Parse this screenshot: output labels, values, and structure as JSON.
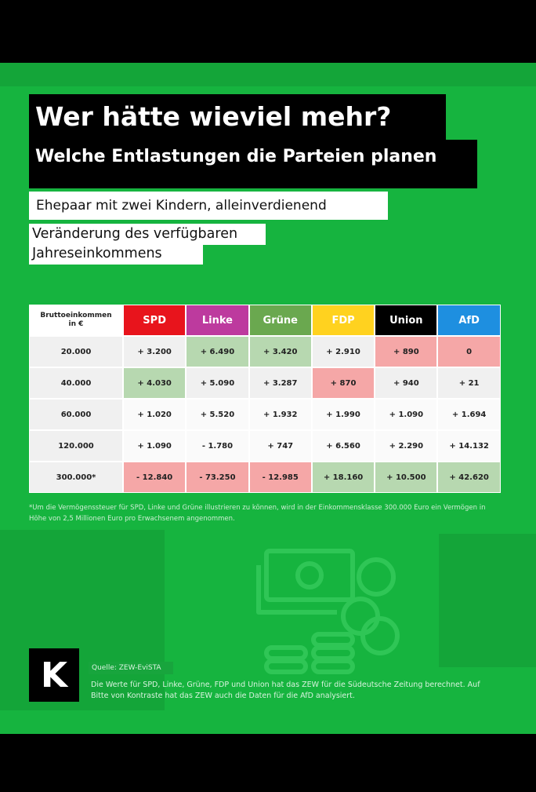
{
  "header": {
    "title": "Wer hätte wieviel mehr?",
    "subtitle": "Welche Entlastungen die Parteien planen",
    "scenario": "Ehepaar mit zwei Kindern, alleinverdienend",
    "measure_line1": "Veränderung des verfügbaren",
    "measure_line2": "Jahreseinkommens"
  },
  "colors": {
    "background": "#16b43f",
    "SPD": "#e8141c",
    "Linke": "#bd3a9e",
    "Grüne": "#6aa84f",
    "FDP": "#ffd21f",
    "Union": "#000000",
    "AfD": "#1e8fe0",
    "positive_highlight": "#b7d8b0",
    "negative_highlight": "#f5a7a7"
  },
  "chart_data": {
    "type": "table",
    "row_header_line1": "Bruttoeinkommen",
    "row_header_line2": "in €",
    "columns": [
      "SPD",
      "Linke",
      "Grüne",
      "FDP",
      "Union",
      "AfD"
    ],
    "rows": [
      {
        "income": "20.000",
        "values": [
          "+ 3.200",
          "+ 6.490",
          "+ 3.420",
          "+ 2.910",
          "+ 890",
          "0"
        ],
        "shading": [
          "d",
          "g",
          "g",
          "d",
          "r",
          "r"
        ]
      },
      {
        "income": "40.000",
        "values": [
          "+ 4.030",
          "+ 5.090",
          "+ 3.287",
          "+ 870",
          "+ 940",
          "+ 21"
        ],
        "shading": [
          "g",
          "d",
          "d",
          "r",
          "d",
          "d"
        ]
      },
      {
        "income": "60.000",
        "values": [
          "+ 1.020",
          "+ 5.520",
          "+ 1.932",
          "+ 1.990",
          "+ 1.090",
          "+ 1.694"
        ],
        "shading": [
          "w",
          "w",
          "w",
          "w",
          "w",
          "w"
        ]
      },
      {
        "income": "120.000",
        "values": [
          "+ 1.090",
          "- 1.780",
          "+ 747",
          "+ 6.560",
          "+ 2.290",
          "+ 14.132"
        ],
        "shading": [
          "w",
          "w",
          "w",
          "w",
          "w",
          "w"
        ]
      },
      {
        "income": "300.000*",
        "values": [
          "- 12.840",
          "- 73.250",
          "- 12.985",
          "+ 18.160",
          "+ 10.500",
          "+ 42.620"
        ],
        "shading": [
          "r",
          "r",
          "r",
          "g",
          "g",
          "g"
        ]
      }
    ]
  },
  "footnote": "*Um die Vermögenssteuer für SPD, Linke und Grüne illustrieren zu können, wird in der Einkommensklasse 300.000 Euro ein Vermögen in Höhe von 2,5 Millionen Euro pro Erwachsenem angenommen.",
  "logo_letter": "K",
  "source": "Quelle: ZEW-EviSTA",
  "credits": "Die Werte für SPD, Linke, Grüne, FDP und Union hat das ZEW für die Südeutsche Zeitung berechnet. Auf Bitte von Kontraste hat das ZEW auch die Daten für die AfD analysiert.",
  "icon": "money-coins-icon"
}
